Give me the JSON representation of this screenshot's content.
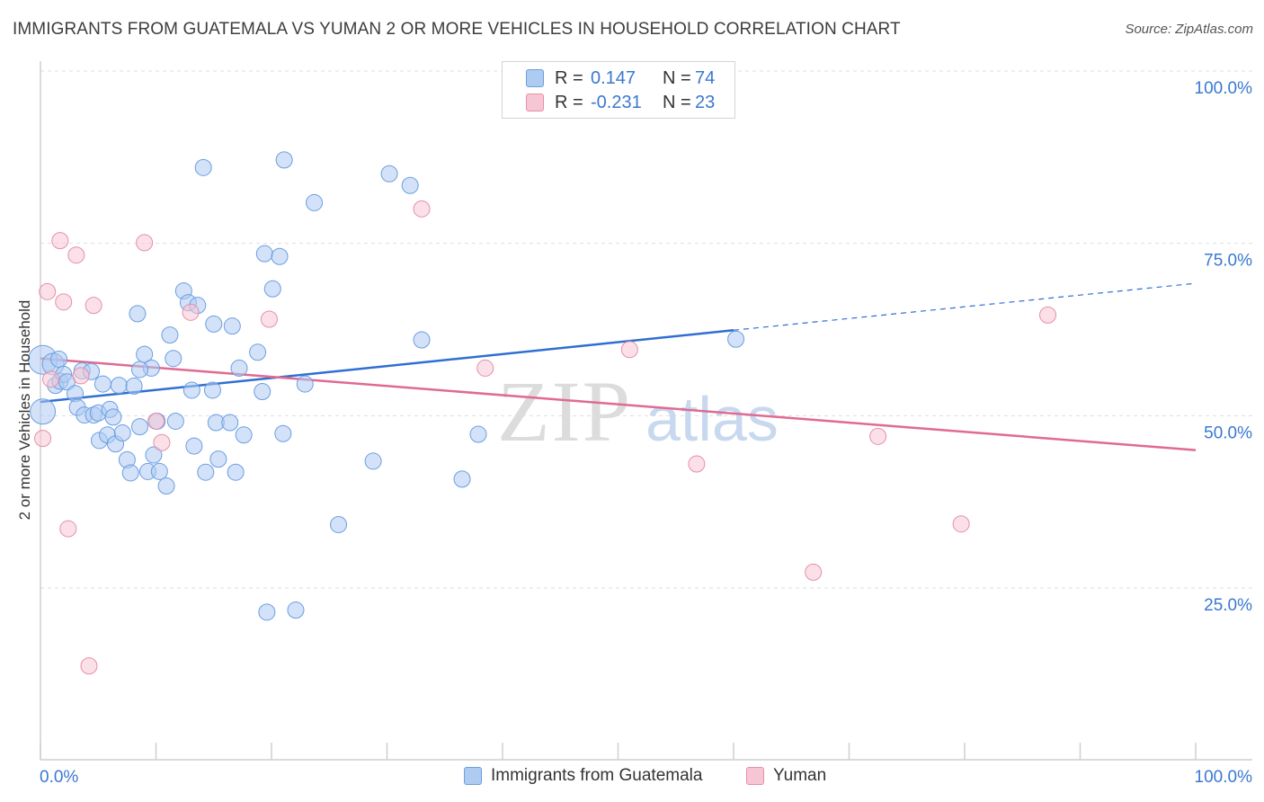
{
  "title": "IMMIGRANTS FROM GUATEMALA VS YUMAN 2 OR MORE VEHICLES IN HOUSEHOLD CORRELATION CHART",
  "source": "Source: ZipAtlas.com",
  "watermark": {
    "zip": "ZIP",
    "atlas": "atlas"
  },
  "legend": {
    "rows": [
      {
        "r_label": "R =",
        "r_value": "0.147",
        "n_label": "N =",
        "n_value": "74",
        "color": "#aecbf2",
        "stroke": "#6b9ee0"
      },
      {
        "r_label": "R =",
        "r_value": "-0.231",
        "n_label": "N =",
        "n_value": "23",
        "color": "#f7c6d4",
        "stroke": "#e58fab"
      }
    ]
  },
  "bottom_legend": {
    "series1": "Immigrants from Guatemala",
    "series2": "Yuman"
  },
  "axes": {
    "x_min_label": "0.0%",
    "x_max_label": "100.0%",
    "y_ticks": [
      "100.0%",
      "75.0%",
      "50.0%",
      "25.0%"
    ],
    "ylabel": "2 or more Vehicles in Household"
  },
  "chart_data": {
    "type": "scatter",
    "title": "IMMIGRANTS FROM GUATEMALA VS YUMAN 2 OR MORE VEHICLES IN HOUSEHOLD CORRELATION CHART",
    "xlabel": "",
    "ylabel": "2 or more Vehicles in Household",
    "xlim": [
      0,
      100
    ],
    "ylim": [
      0,
      100
    ],
    "y_ticks": [
      25,
      50,
      75,
      100
    ],
    "grid": true,
    "legend_position": "top-center",
    "series": [
      {
        "name": "Immigrants from Guatemala",
        "color": "#aecbf2",
        "stroke": "#6b9ee0",
        "trend": {
          "x": [
            0,
            60
          ],
          "y": [
            52.0,
            62.4
          ],
          "extend_to": [
            100,
            69.2
          ]
        },
        "points": [
          [
            0.2,
            58.1,
            16
          ],
          [
            0.2,
            50.6,
            14
          ],
          [
            1.1,
            57.5,
            12
          ],
          [
            1.3,
            54.4,
            9
          ],
          [
            1.6,
            58.2,
            9
          ],
          [
            1.7,
            55.0,
            9
          ],
          [
            2.0,
            56.0,
            9
          ],
          [
            2.3,
            54.9,
            9
          ],
          [
            3.0,
            53.2,
            9
          ],
          [
            3.2,
            51.2,
            9
          ],
          [
            3.6,
            56.5,
            9
          ],
          [
            3.8,
            50.1,
            9
          ],
          [
            4.4,
            56.4,
            9
          ],
          [
            4.6,
            50.1,
            9
          ],
          [
            5.0,
            50.4,
            9
          ],
          [
            5.1,
            46.4,
            9
          ],
          [
            5.4,
            54.6,
            9
          ],
          [
            5.8,
            47.2,
            9
          ],
          [
            6.0,
            50.9,
            9
          ],
          [
            6.3,
            49.8,
            9
          ],
          [
            6.5,
            45.9,
            9
          ],
          [
            6.8,
            54.4,
            9
          ],
          [
            7.1,
            47.5,
            9
          ],
          [
            7.5,
            43.6,
            9
          ],
          [
            7.8,
            41.7,
            9
          ],
          [
            8.1,
            54.3,
            9
          ],
          [
            8.4,
            64.8,
            9
          ],
          [
            8.6,
            48.4,
            9
          ],
          [
            9.0,
            58.9,
            9
          ],
          [
            9.3,
            41.9,
            9
          ],
          [
            9.6,
            56.9,
            9
          ],
          [
            9.8,
            44.3,
            9
          ],
          [
            10.1,
            49.2,
            9
          ],
          [
            10.3,
            41.9,
            9
          ],
          [
            10.9,
            39.8,
            9
          ],
          [
            11.2,
            61.7,
            9
          ],
          [
            11.5,
            58.3,
            9
          ],
          [
            11.7,
            49.2,
            9
          ],
          [
            12.4,
            68.1,
            9
          ],
          [
            12.8,
            66.4,
            9
          ],
          [
            13.1,
            53.7,
            9
          ],
          [
            13.3,
            45.6,
            9
          ],
          [
            13.6,
            66.0,
            9
          ],
          [
            14.1,
            86.0,
            9
          ],
          [
            14.3,
            41.8,
            9
          ],
          [
            14.9,
            53.7,
            9
          ],
          [
            15.0,
            63.3,
            9
          ],
          [
            15.2,
            49.0,
            9
          ],
          [
            15.4,
            43.7,
            9
          ],
          [
            16.4,
            49.0,
            9
          ],
          [
            16.6,
            63.0,
            9
          ],
          [
            16.9,
            41.8,
            9
          ],
          [
            17.2,
            56.9,
            9
          ],
          [
            17.6,
            47.2,
            9
          ],
          [
            18.8,
            59.2,
            9
          ],
          [
            19.2,
            53.5,
            9
          ],
          [
            19.4,
            73.5,
            9
          ],
          [
            19.6,
            21.5,
            9
          ],
          [
            20.1,
            68.4,
            9
          ],
          [
            20.7,
            73.1,
            9
          ],
          [
            21.0,
            47.4,
            9
          ],
          [
            21.1,
            87.1,
            9
          ],
          [
            22.1,
            21.8,
            9
          ],
          [
            22.9,
            54.6,
            9
          ],
          [
            23.7,
            80.9,
            9
          ],
          [
            25.8,
            34.2,
            9
          ],
          [
            28.8,
            43.4,
            9
          ],
          [
            30.2,
            85.1,
            9
          ],
          [
            32.0,
            83.4,
            9
          ],
          [
            33.0,
            61.0,
            9
          ],
          [
            36.5,
            40.8,
            9
          ],
          [
            37.9,
            47.3,
            9
          ],
          [
            60.2,
            61.1,
            9
          ],
          [
            8.6,
            56.7,
            9
          ]
        ]
      },
      {
        "name": "Yuman",
        "color": "#f7c6d4",
        "stroke": "#e58fab",
        "trend": {
          "x": [
            0,
            100
          ],
          "y": [
            58.3,
            45.0
          ]
        },
        "points": [
          [
            0.2,
            46.7,
            9
          ],
          [
            0.6,
            68.0,
            9
          ],
          [
            1.7,
            75.4,
            9
          ],
          [
            2.0,
            66.5,
            9
          ],
          [
            2.4,
            33.6,
            9
          ],
          [
            3.1,
            73.3,
            9
          ],
          [
            3.5,
            55.8,
            9
          ],
          [
            4.2,
            13.7,
            9
          ],
          [
            4.6,
            66.0,
            9
          ],
          [
            9.0,
            75.1,
            9
          ],
          [
            10.0,
            49.2,
            9
          ],
          [
            10.5,
            46.1,
            9
          ],
          [
            13.0,
            65.0,
            9
          ],
          [
            19.8,
            64.0,
            9
          ],
          [
            33.0,
            80.0,
            9
          ],
          [
            38.5,
            56.9,
            9
          ],
          [
            51.0,
            59.6,
            9
          ],
          [
            56.8,
            43.0,
            9
          ],
          [
            66.9,
            27.3,
            9
          ],
          [
            72.5,
            47.0,
            9
          ],
          [
            79.7,
            34.3,
            9
          ],
          [
            87.2,
            64.6,
            9
          ],
          [
            0.9,
            55.3,
            9
          ]
        ]
      }
    ]
  }
}
